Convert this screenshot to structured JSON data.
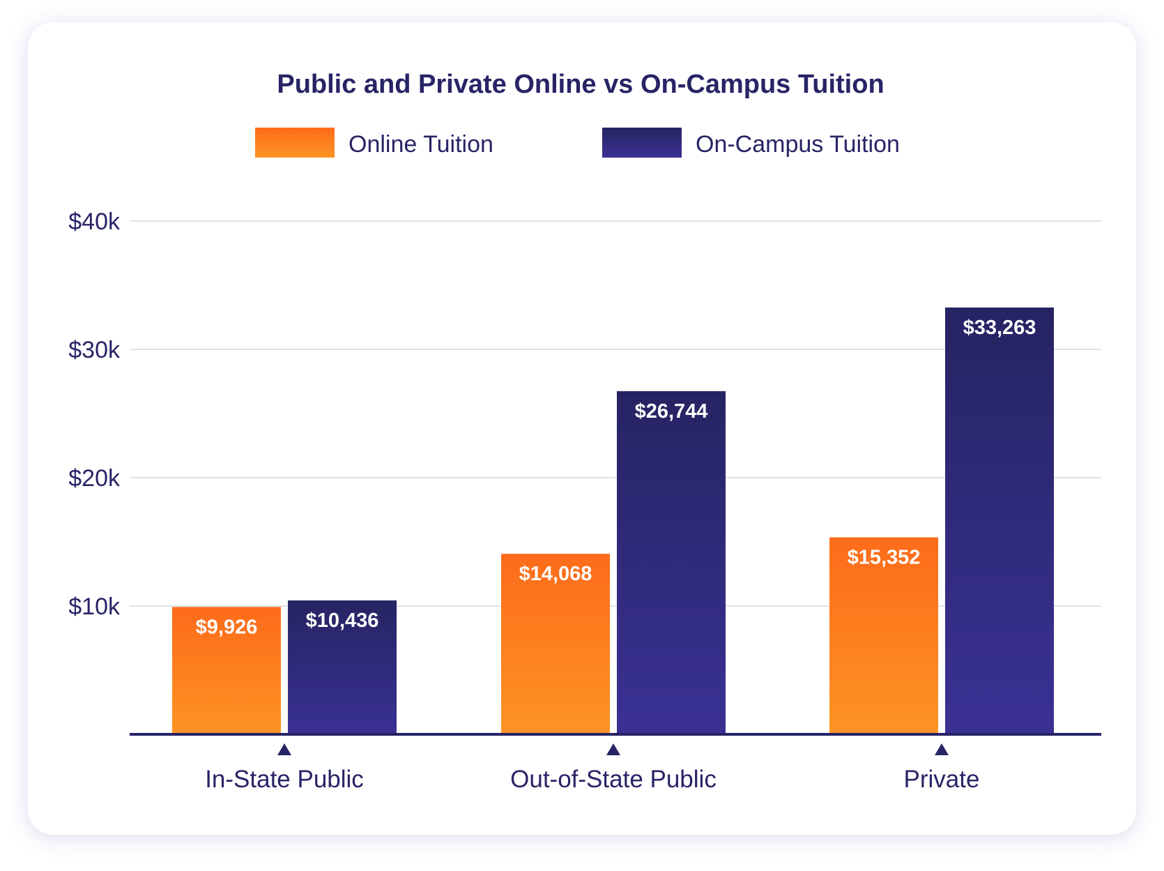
{
  "chart_data": {
    "type": "bar",
    "title": "Public and Private Online vs On-Campus Tuition",
    "categories": [
      "In-State Public",
      "Out-of-State Public",
      "Private"
    ],
    "series": [
      {
        "name": "Online Tuition",
        "values": [
          9926,
          14068,
          15352
        ],
        "labels": [
          "$9,926",
          "$14,068",
          "$15,352"
        ],
        "color_top": "#fd6b1a",
        "color_bottom": "#fd9424"
      },
      {
        "name": "On-Campus Tuition",
        "values": [
          10436,
          26744,
          33263
        ],
        "labels": [
          "$10,436",
          "$26,744",
          "$33,263"
        ],
        "color_top": "#262463",
        "color_bottom": "#3a3194"
      }
    ],
    "yticks": [
      {
        "value": 10000,
        "label": "$10k"
      },
      {
        "value": 20000,
        "label": "$20k"
      },
      {
        "value": 30000,
        "label": "$30k"
      },
      {
        "value": 40000,
        "label": "$40k"
      }
    ],
    "ylim": [
      0,
      40000
    ],
    "grid": true,
    "legend_position": "top-center",
    "text_color": "#272466",
    "grid_color": "#e1e3ea"
  }
}
